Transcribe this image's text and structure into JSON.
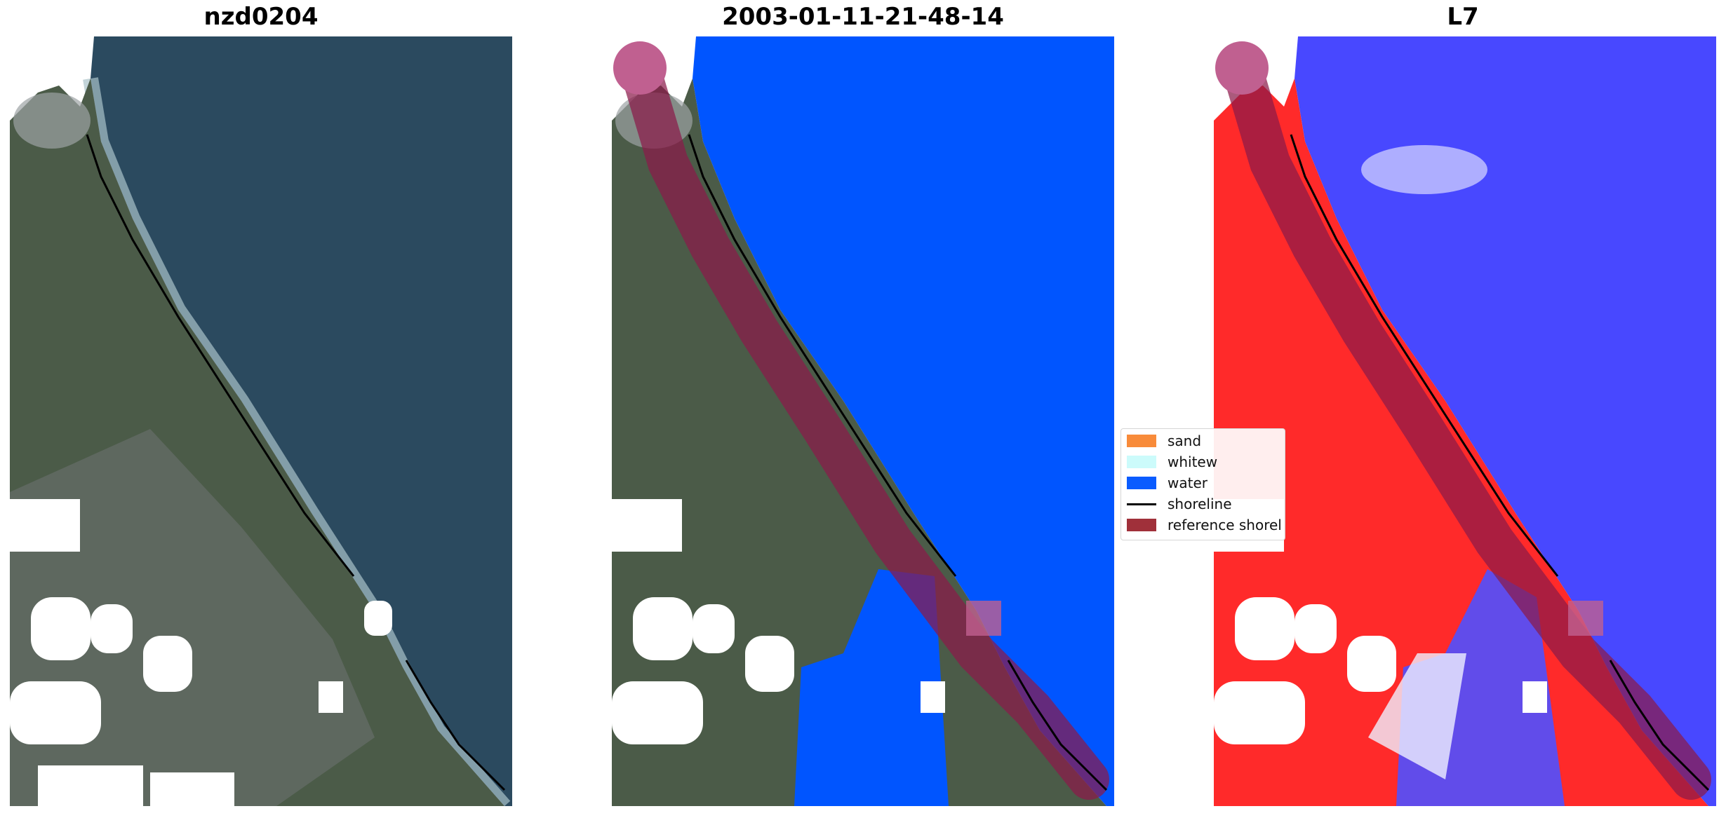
{
  "figure": {
    "panels": [
      {
        "title": "nzd0204"
      },
      {
        "title": "2003-01-11-21-48-14"
      },
      {
        "title": "L7"
      }
    ]
  },
  "legend": {
    "items": [
      {
        "label": "sand",
        "color": "#f88b3a"
      },
      {
        "label": "whitew",
        "color": "#ccfbfb"
      },
      {
        "label": "water",
        "color": "#0a5cff"
      },
      {
        "label": "shoreline",
        "color": "#000000"
      },
      {
        "label": "reference shorel",
        "color": "#a0303a"
      }
    ]
  },
  "colors": {
    "ocean_rgb": "#2b4a5f",
    "land_rgb": "#4a5a48",
    "water_class": "#0055ff",
    "index_positive": "#ff2020",
    "index_negative": "#3030ff",
    "reference_buffer": "#8b1a4a"
  }
}
